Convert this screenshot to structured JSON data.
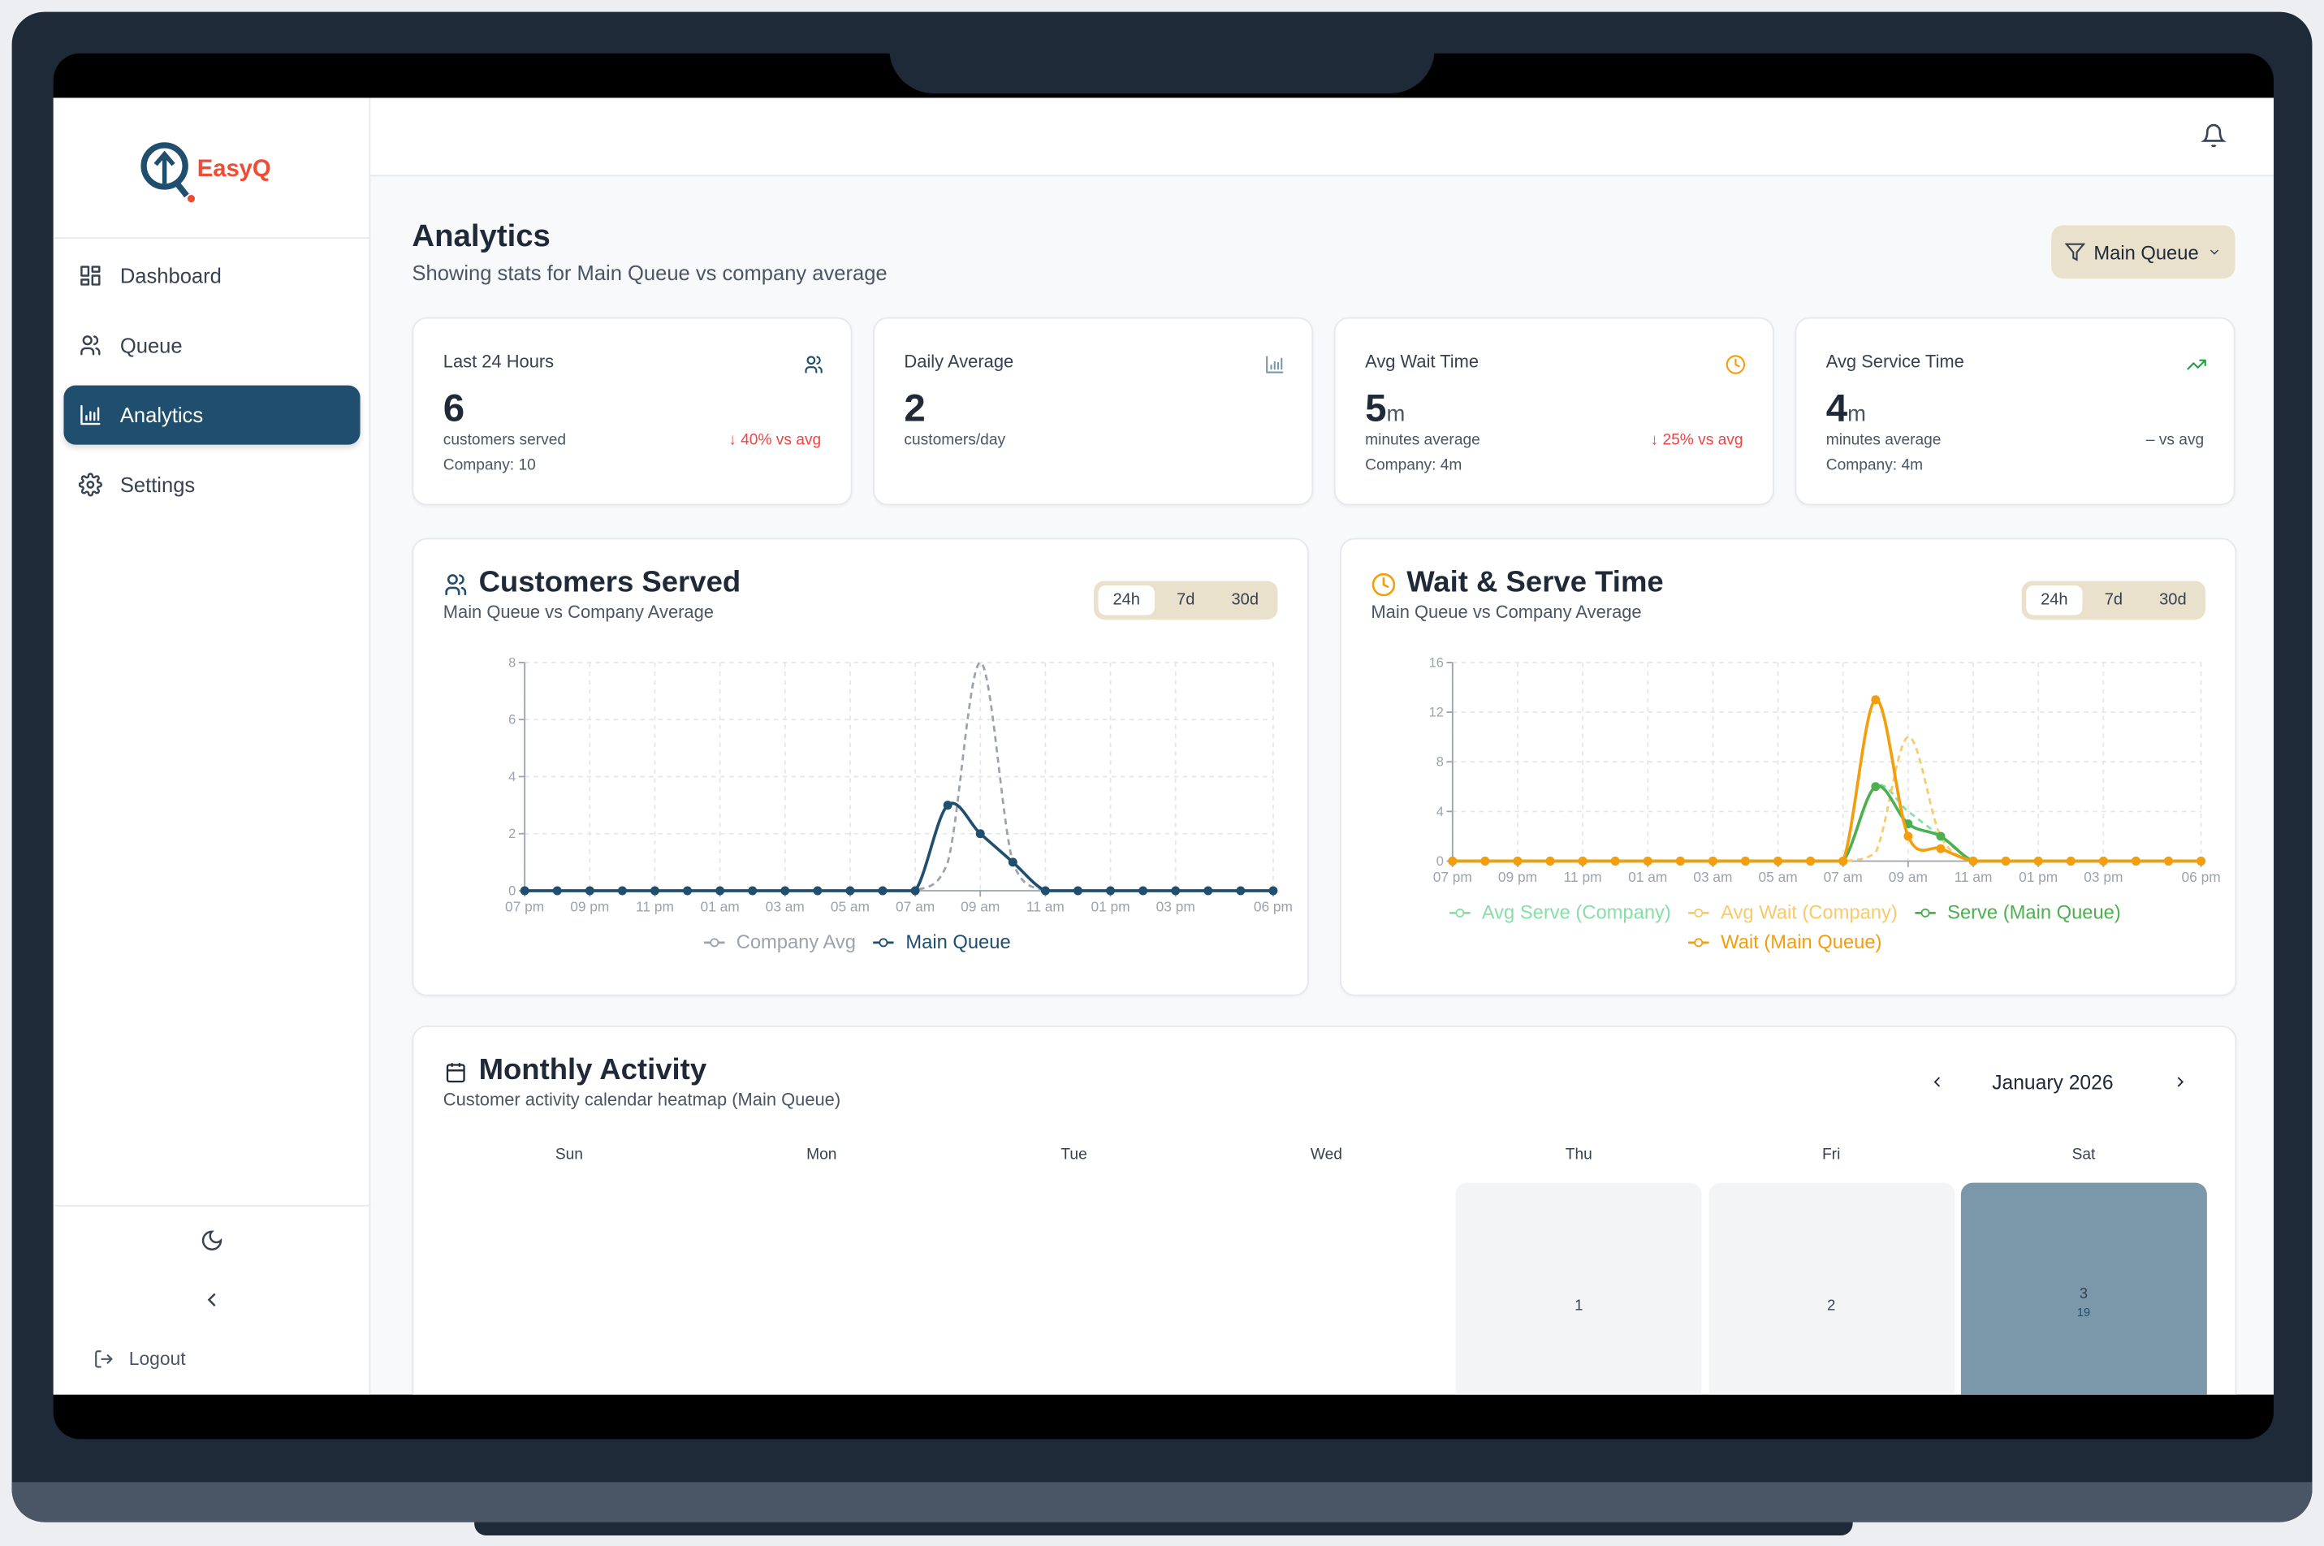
{
  "brand": {
    "name": "EasyQ",
    "primary": "#1f4e6e",
    "accent": "#ef4b35"
  },
  "sidebar": {
    "items": [
      {
        "label": "Dashboard",
        "icon": "dashboard-icon",
        "active": false
      },
      {
        "label": "Queue",
        "icon": "users-icon",
        "active": false
      },
      {
        "label": "Analytics",
        "icon": "bar-chart-icon",
        "active": true
      },
      {
        "label": "Settings",
        "icon": "gear-icon",
        "active": false
      }
    ],
    "theme_icon": "moon-icon",
    "collapse_icon": "chevron-left-icon",
    "logout_label": "Logout"
  },
  "header": {
    "icon": "bell-icon"
  },
  "page": {
    "title": "Analytics",
    "subtitle": "Showing stats for Main Queue vs company average",
    "filter_label": "Main Queue"
  },
  "stats": [
    {
      "label": "Last 24 Hours",
      "value": "6",
      "suffix": "",
      "unit": "customers served",
      "compare": "↓ 40% vs avg",
      "company": "Company: 10",
      "icon": "users-icon",
      "trend": "down"
    },
    {
      "label": "Daily Average",
      "value": "2",
      "suffix": "",
      "unit": "customers/day",
      "compare": "",
      "company": "",
      "icon": "bar-chart-icon",
      "trend": "none"
    },
    {
      "label": "Avg Wait Time",
      "value": "5",
      "suffix": "m",
      "unit": "minutes average",
      "compare": "↓ 25% vs avg",
      "company": "Company: 4m",
      "icon": "clock-icon",
      "trend": "down"
    },
    {
      "label": "Avg Service Time",
      "value": "4",
      "suffix": "m",
      "unit": "minutes average",
      "compare": "– vs avg",
      "company": "Company: 4m",
      "icon": "trending-up-icon",
      "trend": "neutral"
    }
  ],
  "range_options": [
    "24h",
    "7d",
    "30d"
  ],
  "range_selected": "24h",
  "chart_data": [
    {
      "type": "line",
      "title": "Customers Served",
      "subtitle": "Main Queue vs Company Average",
      "x": [
        "07 pm",
        "08 pm",
        "09 pm",
        "10 pm",
        "11 pm",
        "12 am",
        "01 am",
        "02 am",
        "03 am",
        "04 am",
        "05 am",
        "06 am",
        "07 am",
        "08 am",
        "09 am",
        "10 am",
        "11 am",
        "12 pm",
        "01 pm",
        "02 pm",
        "03 pm",
        "04 pm",
        "05 pm",
        "06 pm"
      ],
      "x_tick_labels": [
        "07 pm",
        "09 pm",
        "11 pm",
        "01 am",
        "03 am",
        "05 am",
        "07 am",
        "09 am",
        "11 am",
        "01 pm",
        "03 pm",
        "06 pm"
      ],
      "ylim": [
        0,
        8
      ],
      "y_ticks": [
        0,
        2,
        4,
        6,
        8
      ],
      "grid": true,
      "legend": "bottom",
      "series": [
        {
          "name": "Company Avg",
          "color": "#9ca3af",
          "dashed": true,
          "markers": false,
          "values": [
            0,
            0,
            0,
            0,
            0,
            0,
            0,
            0,
            0,
            0,
            0,
            0,
            0,
            1,
            8,
            1,
            0,
            0,
            0,
            0,
            0,
            0,
            0,
            0
          ]
        },
        {
          "name": "Main Queue",
          "color": "#1f4e6e",
          "dashed": false,
          "markers": true,
          "values": [
            0,
            0,
            0,
            0,
            0,
            0,
            0,
            0,
            0,
            0,
            0,
            0,
            0,
            3,
            2,
            1,
            0,
            0,
            0,
            0,
            0,
            0,
            0,
            0
          ]
        }
      ]
    },
    {
      "type": "line",
      "title": "Wait & Serve Time",
      "subtitle": "Main Queue vs Company Average",
      "x": [
        "07 pm",
        "08 pm",
        "09 pm",
        "10 pm",
        "11 pm",
        "12 am",
        "01 am",
        "02 am",
        "03 am",
        "04 am",
        "05 am",
        "06 am",
        "07 am",
        "08 am",
        "09 am",
        "10 am",
        "11 am",
        "12 pm",
        "01 pm",
        "02 pm",
        "03 pm",
        "04 pm",
        "05 pm",
        "06 pm"
      ],
      "x_tick_labels": [
        "07 pm",
        "09 pm",
        "11 pm",
        "01 am",
        "03 am",
        "05 am",
        "07 am",
        "09 am",
        "11 am",
        "01 pm",
        "03 pm",
        "06 pm"
      ],
      "ylim": [
        0,
        16
      ],
      "y_ticks": [
        0,
        4,
        8,
        12,
        16
      ],
      "grid": true,
      "legend": "bottom",
      "series": [
        {
          "name": "Avg Serve (Company)",
          "color": "#86dfa6",
          "dashed": true,
          "markers": false,
          "values": [
            0,
            0,
            0,
            0,
            0,
            0,
            0,
            0,
            0,
            0,
            0,
            0,
            0,
            6,
            4,
            2,
            0,
            0,
            0,
            0,
            0,
            0,
            0,
            0
          ]
        },
        {
          "name": "Avg Wait (Company)",
          "color": "#f9c96b",
          "dashed": true,
          "markers": false,
          "values": [
            0,
            0,
            0,
            0,
            0,
            0,
            0,
            0,
            0,
            0,
            0,
            0,
            0,
            0.7,
            10,
            2,
            0,
            0,
            0,
            0,
            0,
            0,
            0,
            0
          ]
        },
        {
          "name": "Serve (Main Queue)",
          "color": "#4caf50",
          "dashed": false,
          "markers": true,
          "values": [
            0,
            0,
            0,
            0,
            0,
            0,
            0,
            0,
            0,
            0,
            0,
            0,
            0,
            6,
            3,
            2,
            0,
            0,
            0,
            0,
            0,
            0,
            0,
            0
          ]
        },
        {
          "name": "Wait (Main Queue)",
          "color": "#f59e0b",
          "dashed": false,
          "markers": true,
          "values": [
            0,
            0,
            0,
            0,
            0,
            0,
            0,
            0,
            0,
            0,
            0,
            0,
            0,
            13,
            2,
            1,
            0,
            0,
            0,
            0,
            0,
            0,
            0,
            0
          ]
        }
      ]
    }
  ],
  "monthly": {
    "title": "Monthly Activity",
    "subtitle": "Customer activity calendar heatmap (Main Queue)",
    "month_label": "January 2026",
    "weekdays": [
      "Sun",
      "Mon",
      "Tue",
      "Wed",
      "Thu",
      "Fri",
      "Sat"
    ],
    "days": [
      {
        "day": "1",
        "weekday": 4,
        "count": ""
      },
      {
        "day": "2",
        "weekday": 5,
        "count": ""
      },
      {
        "day": "3",
        "weekday": 6,
        "count": "19"
      }
    ],
    "heat_color": "#7b97aa",
    "empty_color": "#f3f4f6"
  }
}
